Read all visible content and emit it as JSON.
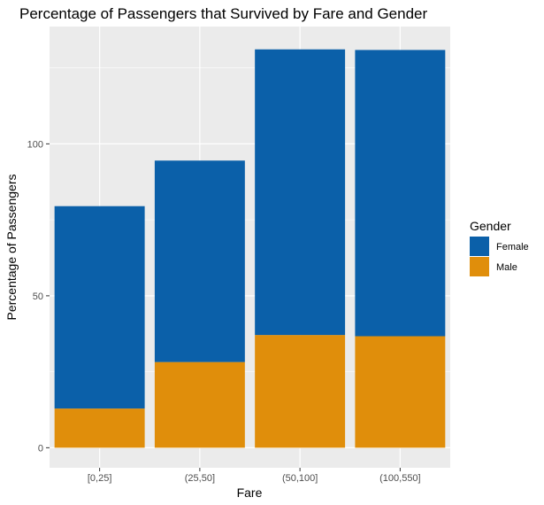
{
  "chart_data": {
    "type": "bar",
    "stacked": true,
    "title": "Percentage of Passengers that Survived by Fare and Gender",
    "xlabel": "Fare",
    "ylabel": "Percentage of Passengers",
    "categories": [
      "[0,25]",
      "(25,50]",
      "(50,100]",
      "(100,550]"
    ],
    "series": [
      {
        "name": "Male",
        "values": [
          12.9,
          28.2,
          37.1,
          36.7
        ],
        "color": "#E08E0B"
      },
      {
        "name": "Female",
        "values": [
          66.6,
          66.3,
          94.0,
          94.2
        ],
        "color": "#0B60A9"
      }
    ],
    "y_ticks": [
      0,
      50,
      100
    ],
    "ylim": [
      -6.6,
      138.6
    ],
    "grid": true,
    "panel_background": "#EBEBEB",
    "legend": {
      "title": "Gender",
      "position": "right",
      "entries": [
        {
          "label": "Female",
          "color": "#0B60A9"
        },
        {
          "label": "Male",
          "color": "#E08E0B"
        }
      ]
    }
  }
}
